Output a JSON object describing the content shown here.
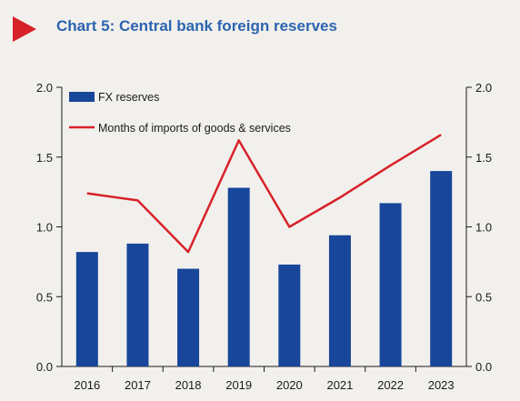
{
  "title": "Chart 5: Central bank foreign reserves",
  "colors": {
    "bar": "#17469a",
    "line": "#d7222a",
    "title": "#2b64b0",
    "marker": "#d7222a"
  },
  "chart_data": {
    "type": "bar",
    "title": "Chart 5: Central bank foreign reserves",
    "xlabel": "",
    "ylabel": "",
    "categories": [
      "2016",
      "2017",
      "2018",
      "2019",
      "2020",
      "2021",
      "2022",
      "2023"
    ],
    "series": [
      {
        "name": "FX reserves",
        "type": "bar",
        "axis": "left",
        "values": [
          0.82,
          0.88,
          0.7,
          1.28,
          0.73,
          0.94,
          1.17,
          1.4
        ]
      },
      {
        "name": "Months of imports of goods & services",
        "type": "line",
        "axis": "right",
        "values": [
          1.24,
          1.19,
          0.82,
          1.62,
          1.0,
          1.21,
          1.44,
          1.66
        ]
      }
    ],
    "ylim": [
      0,
      2.0
    ],
    "ylim_right": [
      0,
      2.0
    ],
    "yticks": [
      "0.0",
      "0.5",
      "1.0",
      "1.5",
      "2.0"
    ],
    "legend": "top-left",
    "grid": false
  }
}
